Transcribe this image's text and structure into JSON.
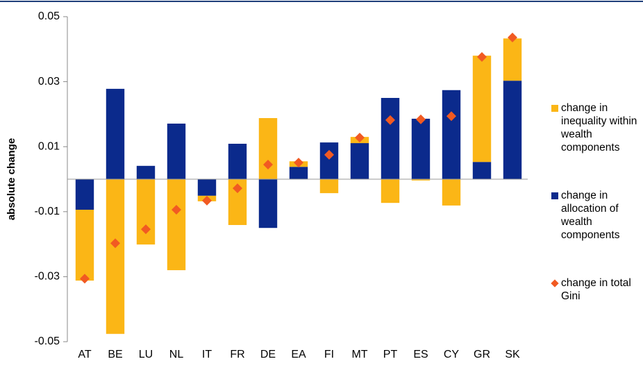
{
  "chart_data": {
    "type": "stacked-bar-with-markers",
    "y_label": "absolute change",
    "categories": [
      "AT",
      "BE",
      "LU",
      "NL",
      "IT",
      "FR",
      "DE",
      "EA",
      "FI",
      "MT",
      "PT",
      "ES",
      "CY",
      "GR",
      "SK"
    ],
    "series": [
      {
        "name": "change in allocation of wealth components",
        "color": "#0b2a8c",
        "kind": "bar",
        "values": [
          -0.0094,
          0.0278,
          0.0041,
          0.0171,
          -0.0051,
          0.0109,
          -0.015,
          0.0038,
          0.0113,
          0.0111,
          0.025,
          0.0186,
          0.0274,
          0.0053,
          0.0303
        ]
      },
      {
        "name": "change in inequality within wealth components",
        "color": "#fbb616",
        "kind": "bar",
        "values": [
          -0.0218,
          -0.0476,
          -0.0201,
          -0.028,
          -0.0017,
          -0.0141,
          0.0188,
          0.0017,
          -0.0043,
          0.0019,
          -0.0073,
          -0.0004,
          -0.0081,
          0.0327,
          0.013
        ]
      },
      {
        "name": "change in total Gini",
        "color": "#f15a22",
        "kind": "marker",
        "values": [
          -0.0306,
          -0.0197,
          -0.0154,
          -0.0094,
          -0.0066,
          -0.0028,
          0.0045,
          0.0051,
          0.0075,
          0.0128,
          0.0182,
          0.0184,
          0.0194,
          0.0376,
          0.0436
        ]
      }
    ],
    "legend_order": [
      1,
      0,
      2
    ],
    "ylim": [
      -0.05,
      0.05
    ],
    "yticks": [
      -0.05,
      -0.03,
      -0.01,
      0.01,
      0.03,
      0.05
    ]
  }
}
